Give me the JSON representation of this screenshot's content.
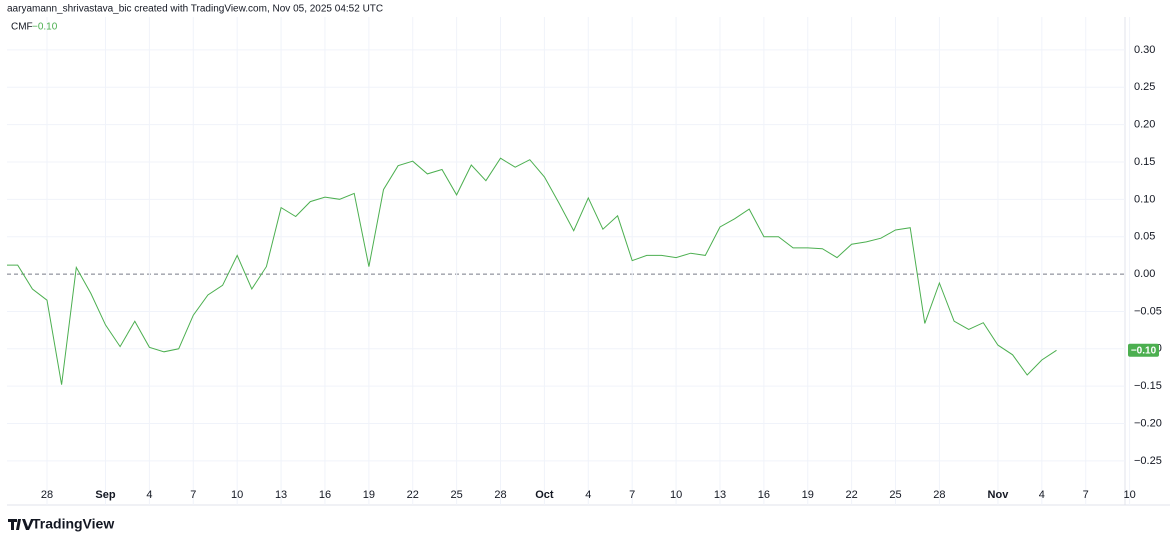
{
  "header": "aaryamann_shrivastava_bic created with TradingView.com, Nov 05, 2025 04:52 UTC",
  "logo": "TradingView",
  "chart_data": {
    "type": "line",
    "categories": [
      null,
      null,
      null,
      "28",
      null,
      null,
      null,
      "Sep",
      null,
      null,
      "4",
      null,
      null,
      "7",
      null,
      null,
      "10",
      null,
      null,
      "13",
      null,
      null,
      "16",
      null,
      null,
      "19",
      null,
      null,
      "22",
      null,
      null,
      "25",
      null,
      null,
      "28",
      null,
      null,
      "Oct",
      null,
      null,
      "4",
      null,
      null,
      "7",
      null,
      null,
      "10",
      null,
      null,
      "13",
      null,
      null,
      "16",
      null,
      null,
      "19",
      null,
      null,
      "22",
      null,
      null,
      "25",
      null,
      null,
      "28",
      null,
      null,
      null,
      "Nov",
      null,
      null,
      "4",
      null,
      null,
      "7",
      null,
      null,
      "10"
    ],
    "series": [
      {
        "name": "CMF",
        "color": "#4caf50",
        "values": [
          0.012,
          0.012,
          -0.02,
          -0.035,
          -0.148,
          0.009,
          -0.026,
          -0.068,
          -0.097,
          -0.063,
          -0.098,
          -0.104,
          -0.1,
          -0.055,
          -0.028,
          -0.015,
          0.025,
          -0.02,
          0.01,
          0.089,
          0.077,
          0.097,
          0.103,
          0.1,
          0.108,
          0.01,
          0.113,
          0.145,
          0.151,
          0.134,
          0.14,
          0.106,
          0.146,
          0.125,
          0.155,
          0.143,
          0.153,
          0.13,
          0.095,
          0.058,
          0.102,
          0.06,
          0.078,
          0.018,
          0.025,
          0.025,
          0.022,
          0.028,
          0.025,
          0.063,
          0.074,
          0.087,
          0.05,
          0.05,
          0.035,
          0.035,
          0.034,
          0.022,
          0.04,
          0.043,
          0.048,
          0.059,
          0.062,
          -0.066,
          -0.012,
          -0.063,
          -0.074,
          -0.065,
          -0.095,
          -0.108,
          -0.135,
          -0.115,
          -0.102,
          null,
          null,
          null,
          null,
          null
        ],
        "value_labels": [
          null,
          null,
          null,
          null,
          null,
          null,
          null,
          null,
          null,
          null,
          null,
          null,
          null,
          null,
          null,
          null,
          null,
          null,
          null,
          null,
          null,
          null,
          null,
          null,
          null,
          null,
          null,
          null,
          null,
          null,
          null,
          null,
          null,
          null,
          null,
          null,
          null,
          null,
          null,
          null,
          null,
          null,
          null,
          null,
          null,
          null,
          null,
          null,
          null,
          null,
          null,
          null,
          null,
          null,
          null,
          null,
          null,
          null,
          null,
          null,
          null,
          null,
          null,
          null,
          null,
          null,
          null,
          null,
          null,
          null,
          null,
          null,
          "−0.10",
          null,
          null,
          null,
          null,
          null
        ]
      }
    ],
    "ylim": [
      -0.309,
      0.344
    ],
    "yticks": [
      {
        "value": 0.3,
        "label": "0.30"
      },
      {
        "value": 0.25,
        "label": "0.25"
      },
      {
        "value": 0.2,
        "label": "0.20"
      },
      {
        "value": 0.15,
        "label": "0.15"
      },
      {
        "value": 0.1,
        "label": "0.10"
      },
      {
        "value": 0.05,
        "label": "0.05"
      },
      {
        "value": 0,
        "label": "0.00"
      },
      {
        "value": -0.05,
        "label": "−0.05"
      },
      {
        "value": -0.1,
        "label": "−0.10"
      },
      {
        "value": -0.15,
        "label": "−0.15"
      },
      {
        "value": -0.2,
        "label": "−0.20"
      },
      {
        "value": -0.25,
        "label": "−0.25"
      }
    ],
    "grid": true,
    "zero_line": true
  }
}
